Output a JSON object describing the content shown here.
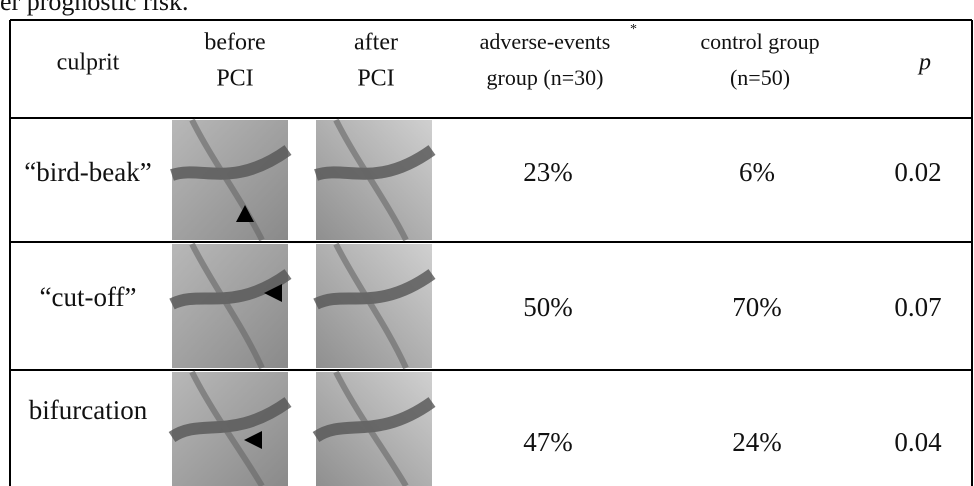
{
  "caption_fragment": "er prognostic risk.",
  "table": {
    "header": {
      "culprit": "culprit",
      "before": [
        "before",
        "PCI"
      ],
      "after": [
        "after",
        "PCI"
      ],
      "adverse": [
        "adverse-events",
        "group (n=30)"
      ],
      "adverse_note_mark": "*",
      "control": [
        "control group",
        "(n=50)"
      ],
      "p": "p"
    },
    "rows": [
      [
        "“bird-beak”",
        "23%",
        "6%",
        "0.02"
      ],
      [
        "“cut-off”",
        "50%",
        "70%",
        "0.07"
      ],
      [
        "bifurcation",
        "47%",
        "24%",
        "0.04"
      ]
    ]
  }
}
